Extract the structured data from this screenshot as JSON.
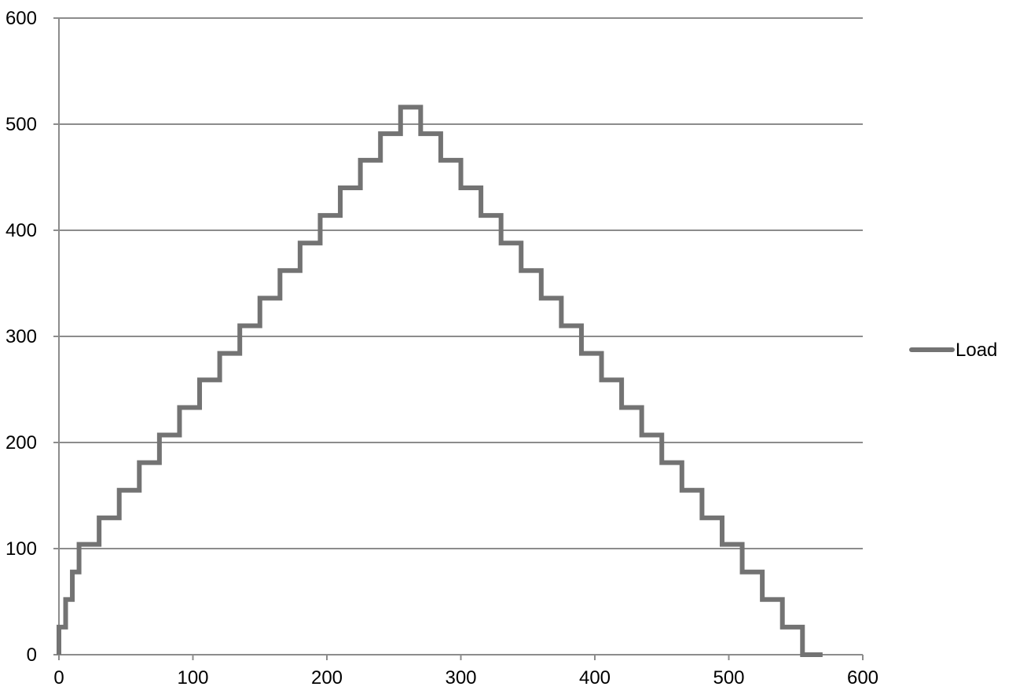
{
  "chart_data": {
    "type": "line",
    "title": "",
    "xlabel": "",
    "ylabel": "",
    "xlim": [
      0,
      600
    ],
    "ylim": [
      0,
      600
    ],
    "x_ticks": [
      "0",
      "100",
      "200",
      "300",
      "400",
      "500",
      "600"
    ],
    "y_ticks": [
      "0",
      "100",
      "200",
      "300",
      "400",
      "500",
      "600"
    ],
    "grid": {
      "horizontal": true,
      "vertical": false
    },
    "legend": {
      "position": "right"
    },
    "step": true,
    "series": [
      {
        "name": "Load",
        "color": "#737373",
        "points": [
          [
            0,
            0
          ],
          [
            0,
            26
          ],
          [
            5,
            26
          ],
          [
            5,
            52
          ],
          [
            10,
            52
          ],
          [
            10,
            78
          ],
          [
            15,
            78
          ],
          [
            15,
            104
          ],
          [
            30,
            104
          ],
          [
            30,
            129
          ],
          [
            45,
            129
          ],
          [
            45,
            155
          ],
          [
            60,
            155
          ],
          [
            60,
            181
          ],
          [
            75,
            181
          ],
          [
            75,
            207
          ],
          [
            90,
            207
          ],
          [
            90,
            233
          ],
          [
            105,
            233
          ],
          [
            105,
            259
          ],
          [
            120,
            259
          ],
          [
            120,
            284
          ],
          [
            135,
            284
          ],
          [
            135,
            310
          ],
          [
            150,
            310
          ],
          [
            150,
            336
          ],
          [
            165,
            336
          ],
          [
            165,
            362
          ],
          [
            180,
            362
          ],
          [
            180,
            388
          ],
          [
            195,
            388
          ],
          [
            195,
            414
          ],
          [
            210,
            414
          ],
          [
            210,
            440
          ],
          [
            225,
            440
          ],
          [
            225,
            466
          ],
          [
            240,
            466
          ],
          [
            240,
            491
          ],
          [
            255,
            491
          ],
          [
            255,
            516
          ],
          [
            270,
            516
          ],
          [
            270,
            491
          ],
          [
            285,
            491
          ],
          [
            285,
            466
          ],
          [
            300,
            466
          ],
          [
            300,
            440
          ],
          [
            315,
            440
          ],
          [
            315,
            414
          ],
          [
            330,
            414
          ],
          [
            330,
            388
          ],
          [
            345,
            388
          ],
          [
            345,
            362
          ],
          [
            360,
            362
          ],
          [
            360,
            336
          ],
          [
            375,
            336
          ],
          [
            375,
            310
          ],
          [
            390,
            310
          ],
          [
            390,
            284
          ],
          [
            405,
            284
          ],
          [
            405,
            259
          ],
          [
            420,
            259
          ],
          [
            420,
            233
          ],
          [
            435,
            233
          ],
          [
            435,
            207
          ],
          [
            450,
            207
          ],
          [
            450,
            181
          ],
          [
            465,
            181
          ],
          [
            465,
            155
          ],
          [
            480,
            155
          ],
          [
            480,
            129
          ],
          [
            495,
            129
          ],
          [
            495,
            104
          ],
          [
            510,
            104
          ],
          [
            510,
            78
          ],
          [
            525,
            78
          ],
          [
            525,
            52
          ],
          [
            540,
            52
          ],
          [
            540,
            26
          ],
          [
            555,
            26
          ],
          [
            555,
            0
          ],
          [
            570,
            0
          ]
        ]
      }
    ]
  }
}
